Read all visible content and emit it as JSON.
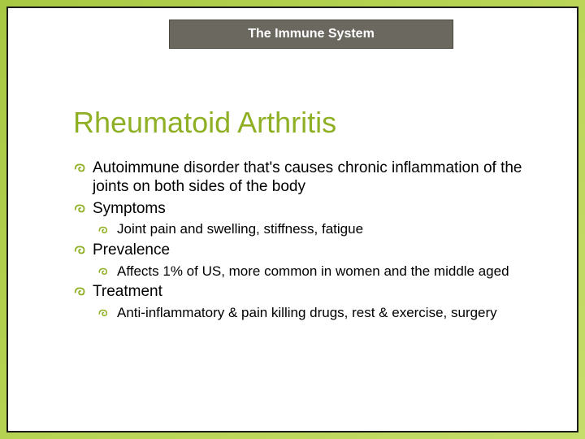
{
  "header": {
    "label": "The Immune System",
    "bg_color": "#6b695f",
    "text_color": "#ffffff"
  },
  "title": {
    "text": "Rheumatoid Arthritis",
    "color": "#8fb024",
    "fontsize": 36
  },
  "bullets": {
    "marker_color": "#8fb024",
    "lvl1_fontsize": 19,
    "lvl2_fontsize": 17,
    "items": [
      {
        "lvl": 1,
        "text": "Autoimmune disorder that's causes chronic inflammation of the joints on both sides of the body"
      },
      {
        "lvl": 1,
        "text": "Symptoms"
      },
      {
        "lvl": 2,
        "text": "Joint pain and swelling, stiffness, fatigue"
      },
      {
        "lvl": 1,
        "text": "Prevalence"
      },
      {
        "lvl": 2,
        "text": "Affects 1% of US, more common in women and the middle aged"
      },
      {
        "lvl": 1,
        "text": "Treatment"
      },
      {
        "lvl": 2,
        "text": "Anti-inflammatory & pain killing drugs, rest & exercise, surgery"
      }
    ]
  },
  "background": {
    "gradient_from": "#a8c843",
    "gradient_to": "#c5dd6a"
  }
}
